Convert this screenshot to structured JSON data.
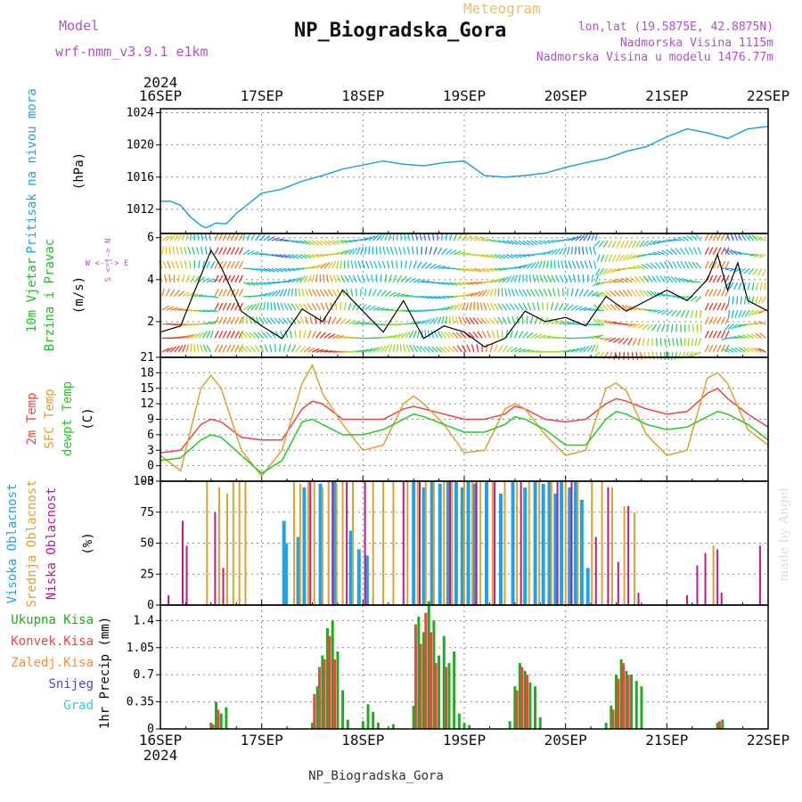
{
  "header": {
    "model_label": "Model",
    "model_name": "wrf-nmm_v3.9.1 e1km",
    "product": "Meteogram",
    "station": "NP_Biogradska_Gora",
    "coords": "lon,lat (19.5875E, 42.8875N)",
    "elevation": "Nadmorska Visina 1115m",
    "model_elevation": "Nadmorska Visina u modelu 1476.77m",
    "footer_station": "NP_Biogradska_Gora",
    "credit": "made by Angel"
  },
  "colors": {
    "pressure": "#1fa2e8",
    "wind_label": "#22bb22",
    "t2m": "#ee4444",
    "tsfc": "#e0a030",
    "dewpt": "#22cc22",
    "cloud_high": "#1fa2e8",
    "cloud_mid": "#e0a030",
    "cloud_low": "#c01888",
    "precip_total": "#22aa22",
    "precip_conv": "#ee4444",
    "precip_frz": "#ff8833",
    "precip_snow": "#4444ee",
    "precip_hail": "#33cccc",
    "header_purple": "#b050d0",
    "header_gold": "#e8c070"
  },
  "time_axis": {
    "year": "2024",
    "days": [
      "16SEP",
      "17SEP",
      "18SEP",
      "19SEP",
      "20SEP",
      "21SEP",
      "22SEP"
    ]
  },
  "panels": {
    "pressure": {
      "label": "Pritisak na nivou mora",
      "unit": "(hPa)",
      "ticks": [
        "1012",
        "1016",
        "1020",
        "1024"
      ]
    },
    "wind": {
      "label1": "10m Vjetar",
      "label2": "Brzina i Pravac",
      "unit": "(m/s)",
      "ticks": [
        "2",
        "4",
        "6"
      ],
      "compass": "W <-|-> E",
      "compass_v": "S <-|-> N"
    },
    "temp": {
      "labels": [
        "2m Temp",
        "SFC Temp",
        "dewpt Temp"
      ],
      "unit": "(C)",
      "ticks": [
        "-3",
        "0",
        "3",
        "6",
        "9",
        "12",
        "15",
        "18",
        "21"
      ]
    },
    "cloud": {
      "labels": [
        "Visoka Oblacnost",
        "Srednja Oblacnost",
        "Niska Oblacnost"
      ],
      "unit": "(%)",
      "ticks": [
        "0",
        "25",
        "50",
        "75",
        "100"
      ]
    },
    "precip": {
      "labels": [
        "Ukupna Kisa",
        "Konvek.Kisa",
        "Zaledj.Kisa",
        "Snijeg",
        "Grad"
      ],
      "unit": "1hr Precip (mm)",
      "ticks": [
        "0",
        "0.35",
        "0.7",
        "1.05",
        "1.4"
      ]
    }
  },
  "chart_data": [
    {
      "type": "line",
      "title": "Pritisak na nivou mora",
      "ylabel": "(hPa)",
      "ylim": [
        1009,
        1024.5
      ],
      "x_days": [
        0,
        0.1,
        0.2,
        0.3,
        0.4,
        0.45,
        0.5,
        0.55,
        0.65,
        0.75,
        0.85,
        0.95,
        1.0,
        1.2,
        1.4,
        1.6,
        1.8,
        2.0,
        2.2,
        2.4,
        2.6,
        2.8,
        3.0,
        3.2,
        3.4,
        3.6,
        3.8,
        4.0,
        4.2,
        4.4,
        4.6,
        4.8,
        5.0,
        5.2,
        5.4,
        5.6,
        5.8,
        6.0
      ],
      "values": [
        1013.0,
        1013.0,
        1012.5,
        1011.0,
        1010.0,
        1009.7,
        1010.0,
        1010.3,
        1010.2,
        1011.5,
        1012.5,
        1013.5,
        1014.0,
        1014.5,
        1015.5,
        1016.2,
        1017.0,
        1017.5,
        1018.0,
        1017.6,
        1017.4,
        1017.8,
        1018.0,
        1016.2,
        1016.0,
        1016.2,
        1016.5,
        1017.2,
        1017.8,
        1018.3,
        1019.2,
        1019.8,
        1021.0,
        1022.0,
        1021.5,
        1020.8,
        1022.0,
        1022.3
      ],
      "grid": true
    },
    {
      "type": "line",
      "title": "10m Vjetar Brzina i Pravac",
      "ylabel": "(m/s)",
      "ylim": [
        0.3,
        6.2
      ],
      "x_days": [
        0,
        0.2,
        0.4,
        0.5,
        0.6,
        0.8,
        1.0,
        1.2,
        1.4,
        1.6,
        1.8,
        2.0,
        2.2,
        2.4,
        2.6,
        2.8,
        3.0,
        3.2,
        3.4,
        3.6,
        3.8,
        4.0,
        4.2,
        4.4,
        4.6,
        4.8,
        5.0,
        5.2,
        5.4,
        5.5,
        5.6,
        5.7,
        5.8,
        6.0
      ],
      "values": [
        1.5,
        1.8,
        4.2,
        5.4,
        4.6,
        2.5,
        1.8,
        1.2,
        2.6,
        2.0,
        3.5,
        2.5,
        1.5,
        3.0,
        1.2,
        1.8,
        1.5,
        0.8,
        1.2,
        2.5,
        2.0,
        2.2,
        1.8,
        3.2,
        2.5,
        3.0,
        3.5,
        3.0,
        4.0,
        5.2,
        3.5,
        4.8,
        3.0,
        2.5
      ],
      "grid": true
    },
    {
      "type": "line",
      "title": "Temperatura",
      "ylabel": "(C)",
      "ylim": [
        -3,
        21
      ],
      "x_days": [
        0,
        0.2,
        0.4,
        0.5,
        0.6,
        0.8,
        1.0,
        1.2,
        1.4,
        1.5,
        1.6,
        1.8,
        2.0,
        2.2,
        2.4,
        2.5,
        2.6,
        2.8,
        3.0,
        3.2,
        3.4,
        3.5,
        3.6,
        3.8,
        4.0,
        4.2,
        4.4,
        4.5,
        4.6,
        4.8,
        5.0,
        5.2,
        5.4,
        5.5,
        5.6,
        5.8,
        6.0
      ],
      "series": [
        {
          "name": "2m Temp",
          "values": [
            2.5,
            3.0,
            8.0,
            9.0,
            8.5,
            5.5,
            5.0,
            5.0,
            11.0,
            12.5,
            12.0,
            9.0,
            9.0,
            9.0,
            11.0,
            11.5,
            11.0,
            10.0,
            9.0,
            9.0,
            10.0,
            11.5,
            11.0,
            9.0,
            8.5,
            9.0,
            12.0,
            13.0,
            12.5,
            11.0,
            10.0,
            10.5,
            14.0,
            15.0,
            13.0,
            10.0,
            7.5
          ]
        },
        {
          "name": "SFC Temp",
          "values": [
            2.0,
            -1.0,
            15.0,
            17.5,
            15.0,
            3.0,
            -2.0,
            3.0,
            16.0,
            19.5,
            14.0,
            8.0,
            3.0,
            4.0,
            12.0,
            13.5,
            12.0,
            8.0,
            2.5,
            3.0,
            11.0,
            12.0,
            11.0,
            6.0,
            2.0,
            3.0,
            15.0,
            16.0,
            14.5,
            6.0,
            2.0,
            3.0,
            17.0,
            18.0,
            16.0,
            7.0,
            4.0
          ]
        },
        {
          "name": "dewpt Temp",
          "values": [
            1.0,
            1.5,
            5.0,
            6.0,
            5.5,
            2.0,
            -1.5,
            1.0,
            8.5,
            9.0,
            8.0,
            6.0,
            6.0,
            7.0,
            9.0,
            10.0,
            9.5,
            8.0,
            6.5,
            6.5,
            8.0,
            9.5,
            9.0,
            7.0,
            4.0,
            4.0,
            9.0,
            10.5,
            10.0,
            8.0,
            7.0,
            7.5,
            9.5,
            10.5,
            10.0,
            8.0,
            5.0
          ]
        }
      ],
      "grid": true
    },
    {
      "type": "bar",
      "title": "Oblacnost",
      "ylabel": "(%)",
      "ylim": [
        0,
        100
      ],
      "series": [
        {
          "name": "Visoka Oblacnost",
          "x_days": [
            1.22,
            1.24,
            1.36,
            1.42,
            1.58,
            1.72,
            1.88,
            1.96,
            2.04,
            2.5,
            2.6,
            2.68,
            2.76,
            2.84,
            2.92,
            2.98,
            3.04,
            3.1,
            3.22,
            3.36,
            3.48,
            3.6,
            3.7,
            3.78,
            3.84,
            3.9,
            3.96,
            4.04,
            4.1,
            4.16,
            4.22
          ],
          "values": [
            68,
            50,
            55,
            95,
            98,
            100,
            60,
            45,
            40,
            100,
            95,
            100,
            98,
            100,
            100,
            95,
            100,
            98,
            100,
            90,
            100,
            95,
            100,
            98,
            100,
            90,
            100,
            95,
            100,
            85,
            30
          ]
        },
        {
          "name": "Srednja Oblacnost",
          "x_days": [
            0.46,
            0.58,
            0.66,
            0.72,
            0.78,
            0.84,
            1.32,
            1.38,
            1.46,
            1.52,
            1.6,
            1.66,
            1.74,
            1.8,
            1.9,
            2.1,
            2.2,
            2.3,
            2.44,
            2.54,
            2.62,
            2.7,
            2.8,
            2.88,
            3.0,
            3.08,
            3.16,
            3.28,
            3.4,
            3.52,
            3.64,
            3.74,
            3.86,
            4.0,
            4.12,
            4.26,
            4.36,
            4.46,
            4.58,
            4.68,
            5.46
          ],
          "values": [
            100,
            95,
            90,
            100,
            100,
            100,
            100,
            98,
            100,
            100,
            95,
            100,
            98,
            100,
            100,
            100,
            100,
            100,
            100,
            100,
            100,
            100,
            100,
            100,
            100,
            100,
            100,
            100,
            100,
            100,
            100,
            100,
            100,
            100,
            100,
            100,
            100,
            95,
            80,
            75,
            48
          ]
        },
        {
          "name": "Niska Oblacnost",
          "x_days": [
            0.08,
            0.22,
            0.26,
            0.54,
            0.62,
            1.48,
            1.7,
            1.84,
            2.02,
            2.4,
            2.56,
            2.86,
            3.12,
            3.3,
            3.56,
            3.92,
            4.06,
            4.3,
            4.42,
            4.52,
            4.62,
            4.72,
            5.2,
            5.3,
            5.38,
            5.5,
            5.54,
            5.92
          ],
          "values": [
            8,
            68,
            48,
            75,
            30,
            100,
            100,
            100,
            100,
            100,
            100,
            100,
            100,
            100,
            100,
            100,
            100,
            55,
            95,
            35,
            80,
            10,
            8,
            32,
            42,
            45,
            10,
            48
          ]
        }
      ],
      "grid": true
    },
    {
      "type": "bar",
      "title": "1hr Precip",
      "ylabel": "(mm)",
      "ylim": [
        0,
        1.6
      ],
      "series": [
        {
          "name": "Ukupna Kisa",
          "x_days": [
            0.5,
            0.55,
            0.6,
            0.65,
            1.5,
            1.55,
            1.6,
            1.65,
            1.7,
            1.75,
            1.8,
            1.85,
            2.0,
            2.05,
            2.1,
            2.15,
            2.3,
            2.5,
            2.55,
            2.6,
            2.65,
            2.7,
            2.75,
            2.8,
            2.85,
            2.9,
            2.95,
            3.0,
            3.05,
            3.45,
            3.5,
            3.55,
            3.6,
            3.65,
            3.7,
            3.75,
            4.4,
            4.45,
            4.5,
            4.55,
            4.6,
            4.65,
            4.7,
            4.75,
            5.5,
            5.55
          ],
          "values": [
            0.08,
            0.35,
            0.2,
            0.28,
            0.08,
            0.55,
            0.95,
            1.3,
            1.4,
            1.0,
            0.5,
            0.12,
            0.1,
            0.32,
            0.22,
            0.08,
            0.06,
            0.3,
            1.45,
            1.25,
            1.65,
            1.4,
            0.95,
            1.2,
            0.85,
            1.0,
            0.2,
            0.08,
            0.05,
            0.1,
            0.55,
            0.85,
            0.75,
            0.6,
            0.55,
            0.15,
            0.08,
            0.3,
            0.7,
            0.9,
            0.75,
            0.7,
            0.62,
            0.55,
            0.08,
            0.12
          ]
        },
        {
          "name": "Konvek.Kisa",
          "x_days": [
            0.52,
            0.57,
            1.52,
            1.57,
            1.62,
            1.67,
            1.72,
            2.52,
            2.57,
            2.62,
            2.67,
            2.72,
            2.82,
            3.52,
            3.57,
            3.62,
            4.47,
            4.52,
            4.57,
            4.62,
            5.52
          ],
          "values": [
            0.06,
            0.25,
            0.45,
            0.8,
            0.9,
            1.2,
            0.9,
            1.35,
            1.1,
            1.5,
            1.25,
            0.85,
            0.8,
            0.5,
            0.8,
            0.7,
            0.25,
            0.65,
            0.85,
            0.7,
            0.1
          ]
        }
      ],
      "grid": true
    }
  ]
}
